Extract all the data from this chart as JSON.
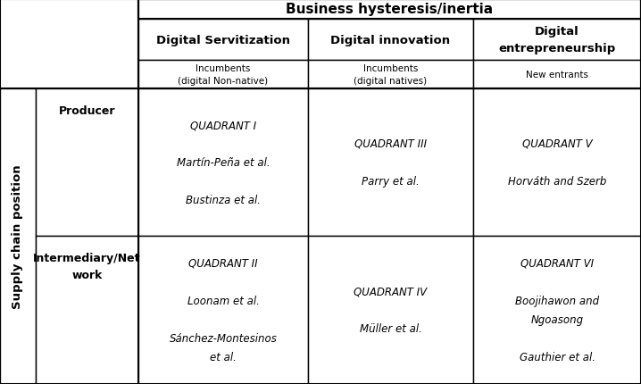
{
  "title": "Business hysteresis/inertia",
  "col_headers": [
    "Digital Servitization",
    "Digital innovation",
    "Digital\nentrepreneurship"
  ],
  "sub_headers": [
    "Incumbents\n(digital Non-native)",
    "Incumbents\n(digital natives)",
    "New entrants"
  ],
  "row_label_main": "Supply chain position",
  "row_labels": [
    "Producer",
    "Intermediary/Net\nwork"
  ],
  "cells": [
    [
      "QUADRANT I\n\nMartín-Peña et al.\n\nBustinza et al.",
      "QUADRANT III\n\nParry et al.",
      "QUADRANT V\n\nHorváth and Szerb"
    ],
    [
      "QUADRANT II\n\nLoonam et al.\n\nSánchez-Montesinos\net al.",
      "QUADRANT IV\n\nMüller et al.",
      "QUADRANT VI\n\nBoojihawon and\nNgoasong\n\nGauthier et al."
    ]
  ],
  "bg_color": "#ffffff",
  "border_color": "#000000",
  "fig_width": 7.18,
  "fig_height": 4.31,
  "dpi": 100,
  "x_cols": [
    0,
    40,
    155,
    345,
    530,
    718
  ],
  "y_rows": [
    0,
    22,
    68,
    100,
    265,
    431
  ]
}
